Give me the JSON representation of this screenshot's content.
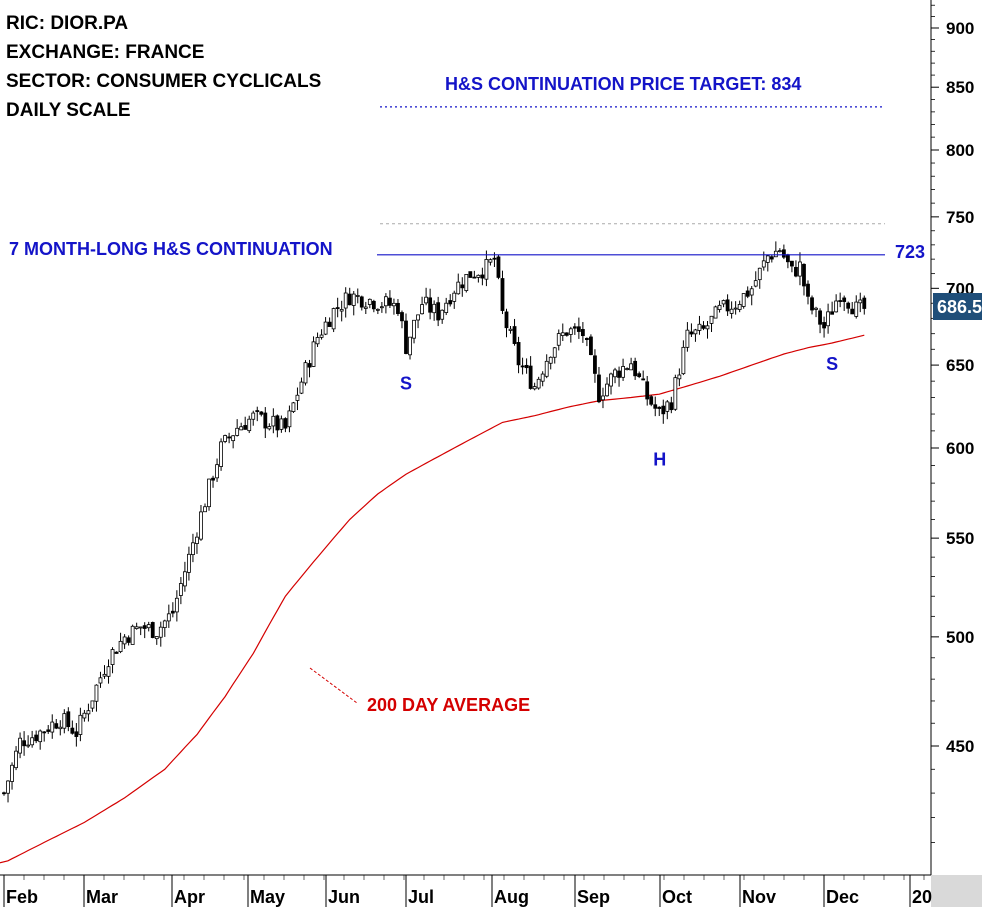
{
  "chart_data": {
    "type": "candlestick",
    "info": {
      "ric": "RIC: DIOR.PA",
      "exchange": "EXCHANGE: FRANCE",
      "sector": "SECTOR: CONSUMER CYCLICALS",
      "scale": "DAILY SCALE"
    },
    "y_axis": {
      "scale": "log",
      "ylim": [
        405,
        920
      ],
      "ticks": [
        900,
        850,
        800,
        750,
        700,
        650,
        600,
        550,
        500,
        450
      ],
      "tick_labels": [
        "900",
        "850",
        "800",
        "750",
        "700",
        "650",
        "600",
        "550",
        "500",
        "450"
      ]
    },
    "x_axis": {
      "months": [
        "Feb",
        "Mar",
        "Apr",
        "May",
        "Jun",
        "Jul",
        "Aug",
        "Sep",
        "Oct",
        "Nov",
        "Dec",
        "20"
      ]
    },
    "last_price": {
      "value": 686.5,
      "label": "686.5",
      "color": "#1f4e79"
    },
    "pattern_title": "7 MONTH-LONG H&S CONTINUATION",
    "neckline": {
      "value": 723,
      "label": "723",
      "color": "#1414c8"
    },
    "price_target": {
      "value": 834,
      "label": "H&S CONTINUATION PRICE TARGET: 834",
      "color": "#1414c8"
    },
    "upper_dotted_level": {
      "value": 745
    },
    "pattern_labels": [
      {
        "text": "S",
        "day": 100,
        "price": 635
      },
      {
        "text": "H",
        "day": 163,
        "price": 590
      },
      {
        "text": "S",
        "day": 206,
        "price": 647
      }
    ],
    "ma_label": {
      "text": "200 DAY AVERAGE",
      "color": "#d40000"
    },
    "candle_keypoints": [
      [
        0,
        430
      ],
      [
        4,
        452
      ],
      [
        8,
        455
      ],
      [
        14,
        462
      ],
      [
        18,
        456
      ],
      [
        22,
        472
      ],
      [
        26,
        490
      ],
      [
        30,
        500
      ],
      [
        34,
        505
      ],
      [
        38,
        503
      ],
      [
        42,
        512
      ],
      [
        46,
        540
      ],
      [
        50,
        570
      ],
      [
        54,
        600
      ],
      [
        58,
        612
      ],
      [
        62,
        618
      ],
      [
        66,
        615
      ],
      [
        70,
        611
      ],
      [
        74,
        640
      ],
      [
        78,
        668
      ],
      [
        82,
        685
      ],
      [
        86,
        695
      ],
      [
        90,
        693
      ],
      [
        94,
        690
      ],
      [
        98,
        688
      ],
      [
        100,
        662
      ],
      [
        104,
        690
      ],
      [
        108,
        683
      ],
      [
        112,
        700
      ],
      [
        116,
        710
      ],
      [
        120,
        714
      ],
      [
        122,
        720
      ],
      [
        124,
        683
      ],
      [
        128,
        652
      ],
      [
        132,
        637
      ],
      [
        136,
        660
      ],
      [
        140,
        672
      ],
      [
        144,
        670
      ],
      [
        148,
        632
      ],
      [
        152,
        645
      ],
      [
        156,
        652
      ],
      [
        160,
        630
      ],
      [
        163,
        620
      ],
      [
        166,
        628
      ],
      [
        170,
        668
      ],
      [
        174,
        672
      ],
      [
        178,
        685
      ],
      [
        182,
        690
      ],
      [
        186,
        700
      ],
      [
        190,
        722
      ],
      [
        193,
        727
      ],
      [
        196,
        711
      ],
      [
        198,
        715
      ],
      [
        200,
        690
      ],
      [
        204,
        674
      ],
      [
        208,
        698
      ],
      [
        212,
        686
      ],
      [
        214,
        686.5
      ]
    ],
    "ma_keypoints": [
      [
        0,
        402
      ],
      [
        10,
        410
      ],
      [
        20,
        418
      ],
      [
        30,
        428
      ],
      [
        40,
        440
      ],
      [
        48,
        455
      ],
      [
        55,
        472
      ],
      [
        62,
        492
      ],
      [
        70,
        520
      ],
      [
        78,
        540
      ],
      [
        86,
        560
      ],
      [
        93,
        574
      ],
      [
        100,
        585
      ],
      [
        108,
        595
      ],
      [
        116,
        605
      ],
      [
        124,
        615
      ],
      [
        132,
        619
      ],
      [
        140,
        624
      ],
      [
        148,
        628
      ],
      [
        156,
        630
      ],
      [
        163,
        632
      ],
      [
        170,
        637
      ],
      [
        178,
        643
      ],
      [
        186,
        650
      ],
      [
        194,
        657
      ],
      [
        200,
        661
      ],
      [
        206,
        664
      ],
      [
        214,
        669
      ]
    ]
  }
}
